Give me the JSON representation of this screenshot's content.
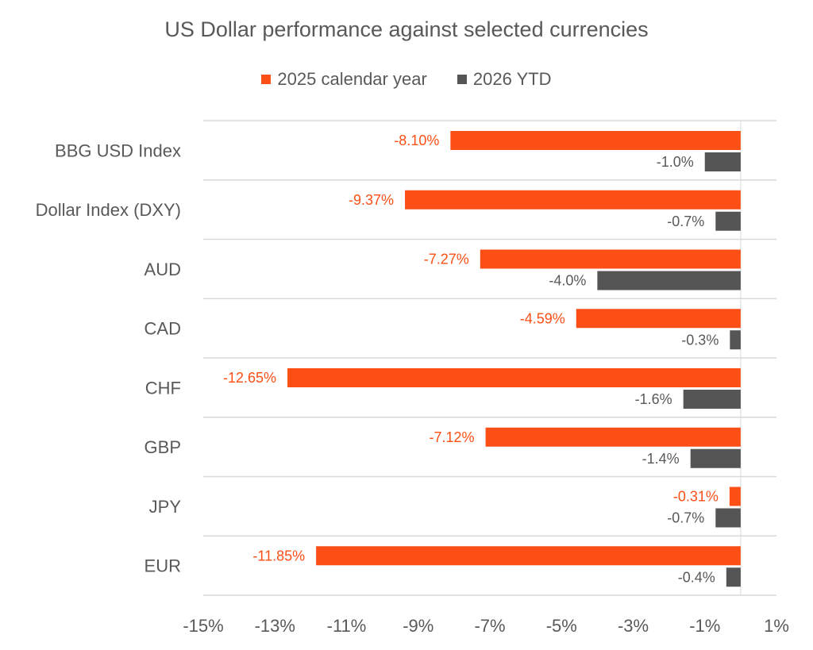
{
  "chart_data": {
    "type": "bar",
    "orientation": "horizontal",
    "title": "US Dollar performance against selected currencies",
    "xlabel": "",
    "ylabel": "",
    "categories": [
      "BBG USD Index",
      "Dollar Index (DXY)",
      "AUD",
      "CAD",
      "CHF",
      "GBP",
      "JPY",
      "EUR"
    ],
    "series": [
      {
        "name": "2025 calendar year",
        "color": "#FC4F16",
        "values": [
          -8.1,
          -9.37,
          -7.27,
          -4.59,
          -12.65,
          -7.12,
          -0.31,
          -11.85
        ],
        "labels": [
          "-8.10%",
          "-9.37%",
          "-7.27%",
          "-4.59%",
          "-12.65%",
          "-7.12%",
          "-0.31%",
          "-11.85%"
        ]
      },
      {
        "name": "2026 YTD",
        "color": "#555555",
        "values": [
          -1.0,
          -0.7,
          -4.0,
          -0.3,
          -1.6,
          -1.4,
          -0.7,
          -0.4
        ],
        "labels": [
          "-1.0%",
          "-0.7%",
          "-4.0%",
          "-0.3%",
          "-1.6%",
          "-1.4%",
          "-0.7%",
          "-0.4%"
        ]
      }
    ],
    "xlim": [
      -15,
      1
    ],
    "xticks": [
      -15,
      -13,
      -11,
      -9,
      -7,
      -5,
      -3,
      -1,
      1
    ],
    "xtick_labels": [
      "-15%",
      "-13%",
      "-11%",
      "-9%",
      "-7%",
      "-5%",
      "-3%",
      "-1%",
      "1%"
    ],
    "grid": "horizontal category separators",
    "legend_position": "top-center"
  }
}
